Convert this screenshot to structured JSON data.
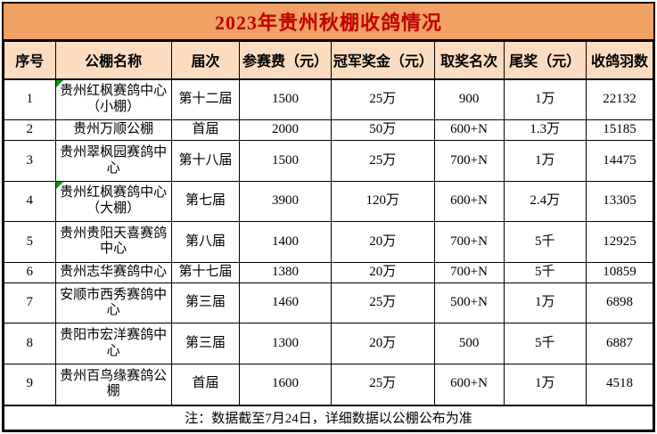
{
  "title": "2023年贵州秋棚收鸽情况",
  "columns": [
    "序号",
    "公棚名称",
    "届次",
    "参赛费（元）",
    "冠军奖金（元）",
    "取奖名次",
    "尾奖（元）",
    "收鸽羽数"
  ],
  "rows": [
    {
      "no": "1",
      "name": "贵州红枫赛鸽中心（小棚）",
      "session": "第十二届",
      "fee": "1500",
      "champion_prize": "25万",
      "prize_ranks": "900",
      "tail_prize": "1万",
      "pigeons": "22132",
      "note_marker": true
    },
    {
      "no": "2",
      "name": "贵州万顺公棚",
      "session": "首届",
      "fee": "2000",
      "champion_prize": "50万",
      "prize_ranks": "600+N",
      "tail_prize": "1.3万",
      "pigeons": "15185",
      "note_marker": false
    },
    {
      "no": "3",
      "name": "贵州翠枫园赛鸽中心",
      "session": "第十八届",
      "fee": "1500",
      "champion_prize": "25万",
      "prize_ranks": "700+N",
      "tail_prize": "1万",
      "pigeons": "14475",
      "note_marker": false
    },
    {
      "no": "4",
      "name": "贵州红枫赛鸽中心（大棚）",
      "session": "第七届",
      "fee": "3900",
      "champion_prize": "120万",
      "prize_ranks": "600+N",
      "tail_prize": "2.4万",
      "pigeons": "13305",
      "note_marker": true
    },
    {
      "no": "5",
      "name": "贵州贵阳天喜赛鸽中心",
      "session": "第八届",
      "fee": "1400",
      "champion_prize": "20万",
      "prize_ranks": "700+N",
      "tail_prize": "5千",
      "pigeons": "12925",
      "note_marker": false
    },
    {
      "no": "6",
      "name": "贵州志华赛鸽中心",
      "session": "第十七届",
      "fee": "1380",
      "champion_prize": "20万",
      "prize_ranks": "700+N",
      "tail_prize": "5千",
      "pigeons": "10859",
      "note_marker": false
    },
    {
      "no": "7",
      "name": "安顺市西秀赛鸽中心",
      "session": "第三届",
      "fee": "1460",
      "champion_prize": "25万",
      "prize_ranks": "500+N",
      "tail_prize": "1万",
      "pigeons": "6898",
      "note_marker": false
    },
    {
      "no": "8",
      "name": "贵阳市宏洋赛鸽中心",
      "session": "第三届",
      "fee": "1300",
      "champion_prize": "20万",
      "prize_ranks": "500",
      "tail_prize": "5千",
      "pigeons": "6887",
      "note_marker": false
    },
    {
      "no": "9",
      "name": "贵州百鸟缘赛鸽公棚",
      "session": "首届",
      "fee": "1600",
      "champion_prize": "25万",
      "prize_ranks": "600+N",
      "tail_prize": "1万",
      "pigeons": "4518",
      "note_marker": false
    }
  ],
  "footer_note": "注：数据截至7月24日，详细数据以公棚公布为准",
  "colors": {
    "title_bg": "#F0A164",
    "header_bg": "#FBDCC0",
    "title_text": "#C00000",
    "border": "#000000",
    "row_bg": "#FFFFFF",
    "note_marker_green": "#149414"
  }
}
